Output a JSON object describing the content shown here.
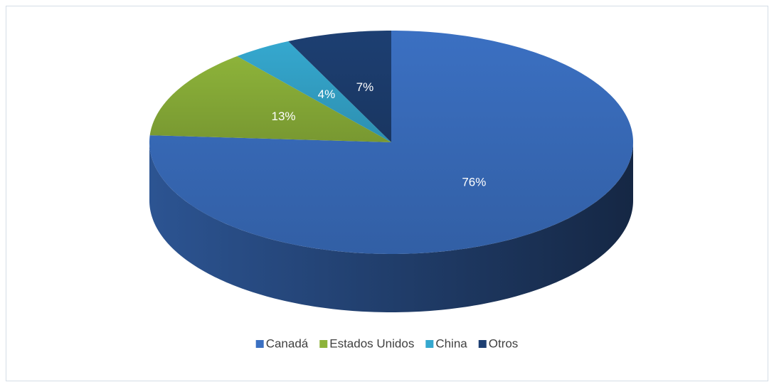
{
  "chart_data": {
    "type": "pie3d",
    "categories": [
      "Canadá",
      "Estados Unidos",
      "China",
      "Otros"
    ],
    "values": [
      76,
      13,
      4,
      7
    ],
    "value_labels": [
      "76%",
      "13%",
      "4%",
      "7%"
    ],
    "colors": [
      "#3b70c2",
      "#8db33a",
      "#35a8cf",
      "#1d3f72"
    ],
    "legend": "bottom"
  }
}
